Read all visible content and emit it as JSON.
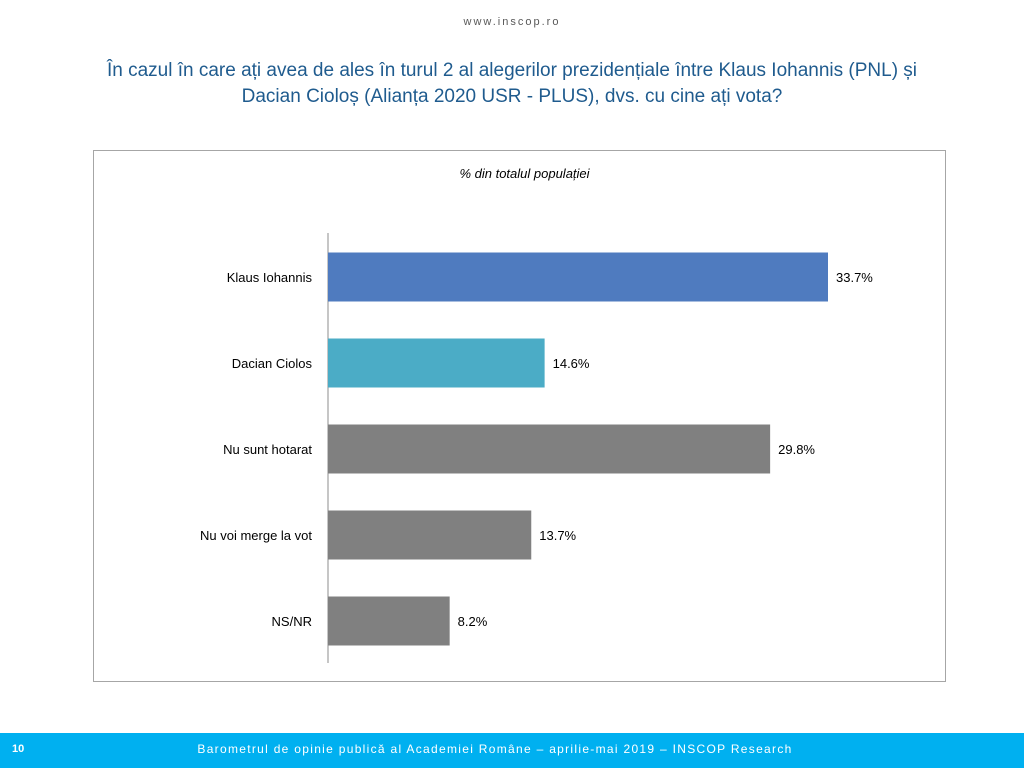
{
  "header": {
    "site_url": "www.inscop.ro",
    "title_line1": "În cazul în care ați avea de ales în turul 2 al alegerilor prezidențiale între Klaus Iohannis  (PNL) și",
    "title_line2": "Dacian Cioloș (Alianța 2020 USR - PLUS), dvs. cu cine ați vota?"
  },
  "chart_data": {
    "type": "bar",
    "orientation": "horizontal",
    "title": "% din totalul populației",
    "categories": [
      "Klaus Iohannis",
      "Dacian Ciolos",
      "Nu sunt hotarat",
      "Nu voi merge la vot",
      "NS/NR"
    ],
    "values": [
      33.7,
      14.6,
      29.8,
      13.7,
      8.2
    ],
    "value_labels": [
      "33.7%",
      "14.6%",
      "29.8%",
      "13.7%",
      "8.2%"
    ],
    "colors": [
      "#4f7bbf",
      "#4bacc6",
      "#808080",
      "#808080",
      "#808080"
    ],
    "xlim": [
      0,
      40
    ],
    "grid": false,
    "legend": "none",
    "xlabel": "",
    "ylabel": ""
  },
  "footer": {
    "page_number": "10",
    "text": "Barometrul de opinie publică al Academiei Române – aprilie-mai 2019 – INSCOP Research",
    "bar_color": "#00b0f0"
  }
}
